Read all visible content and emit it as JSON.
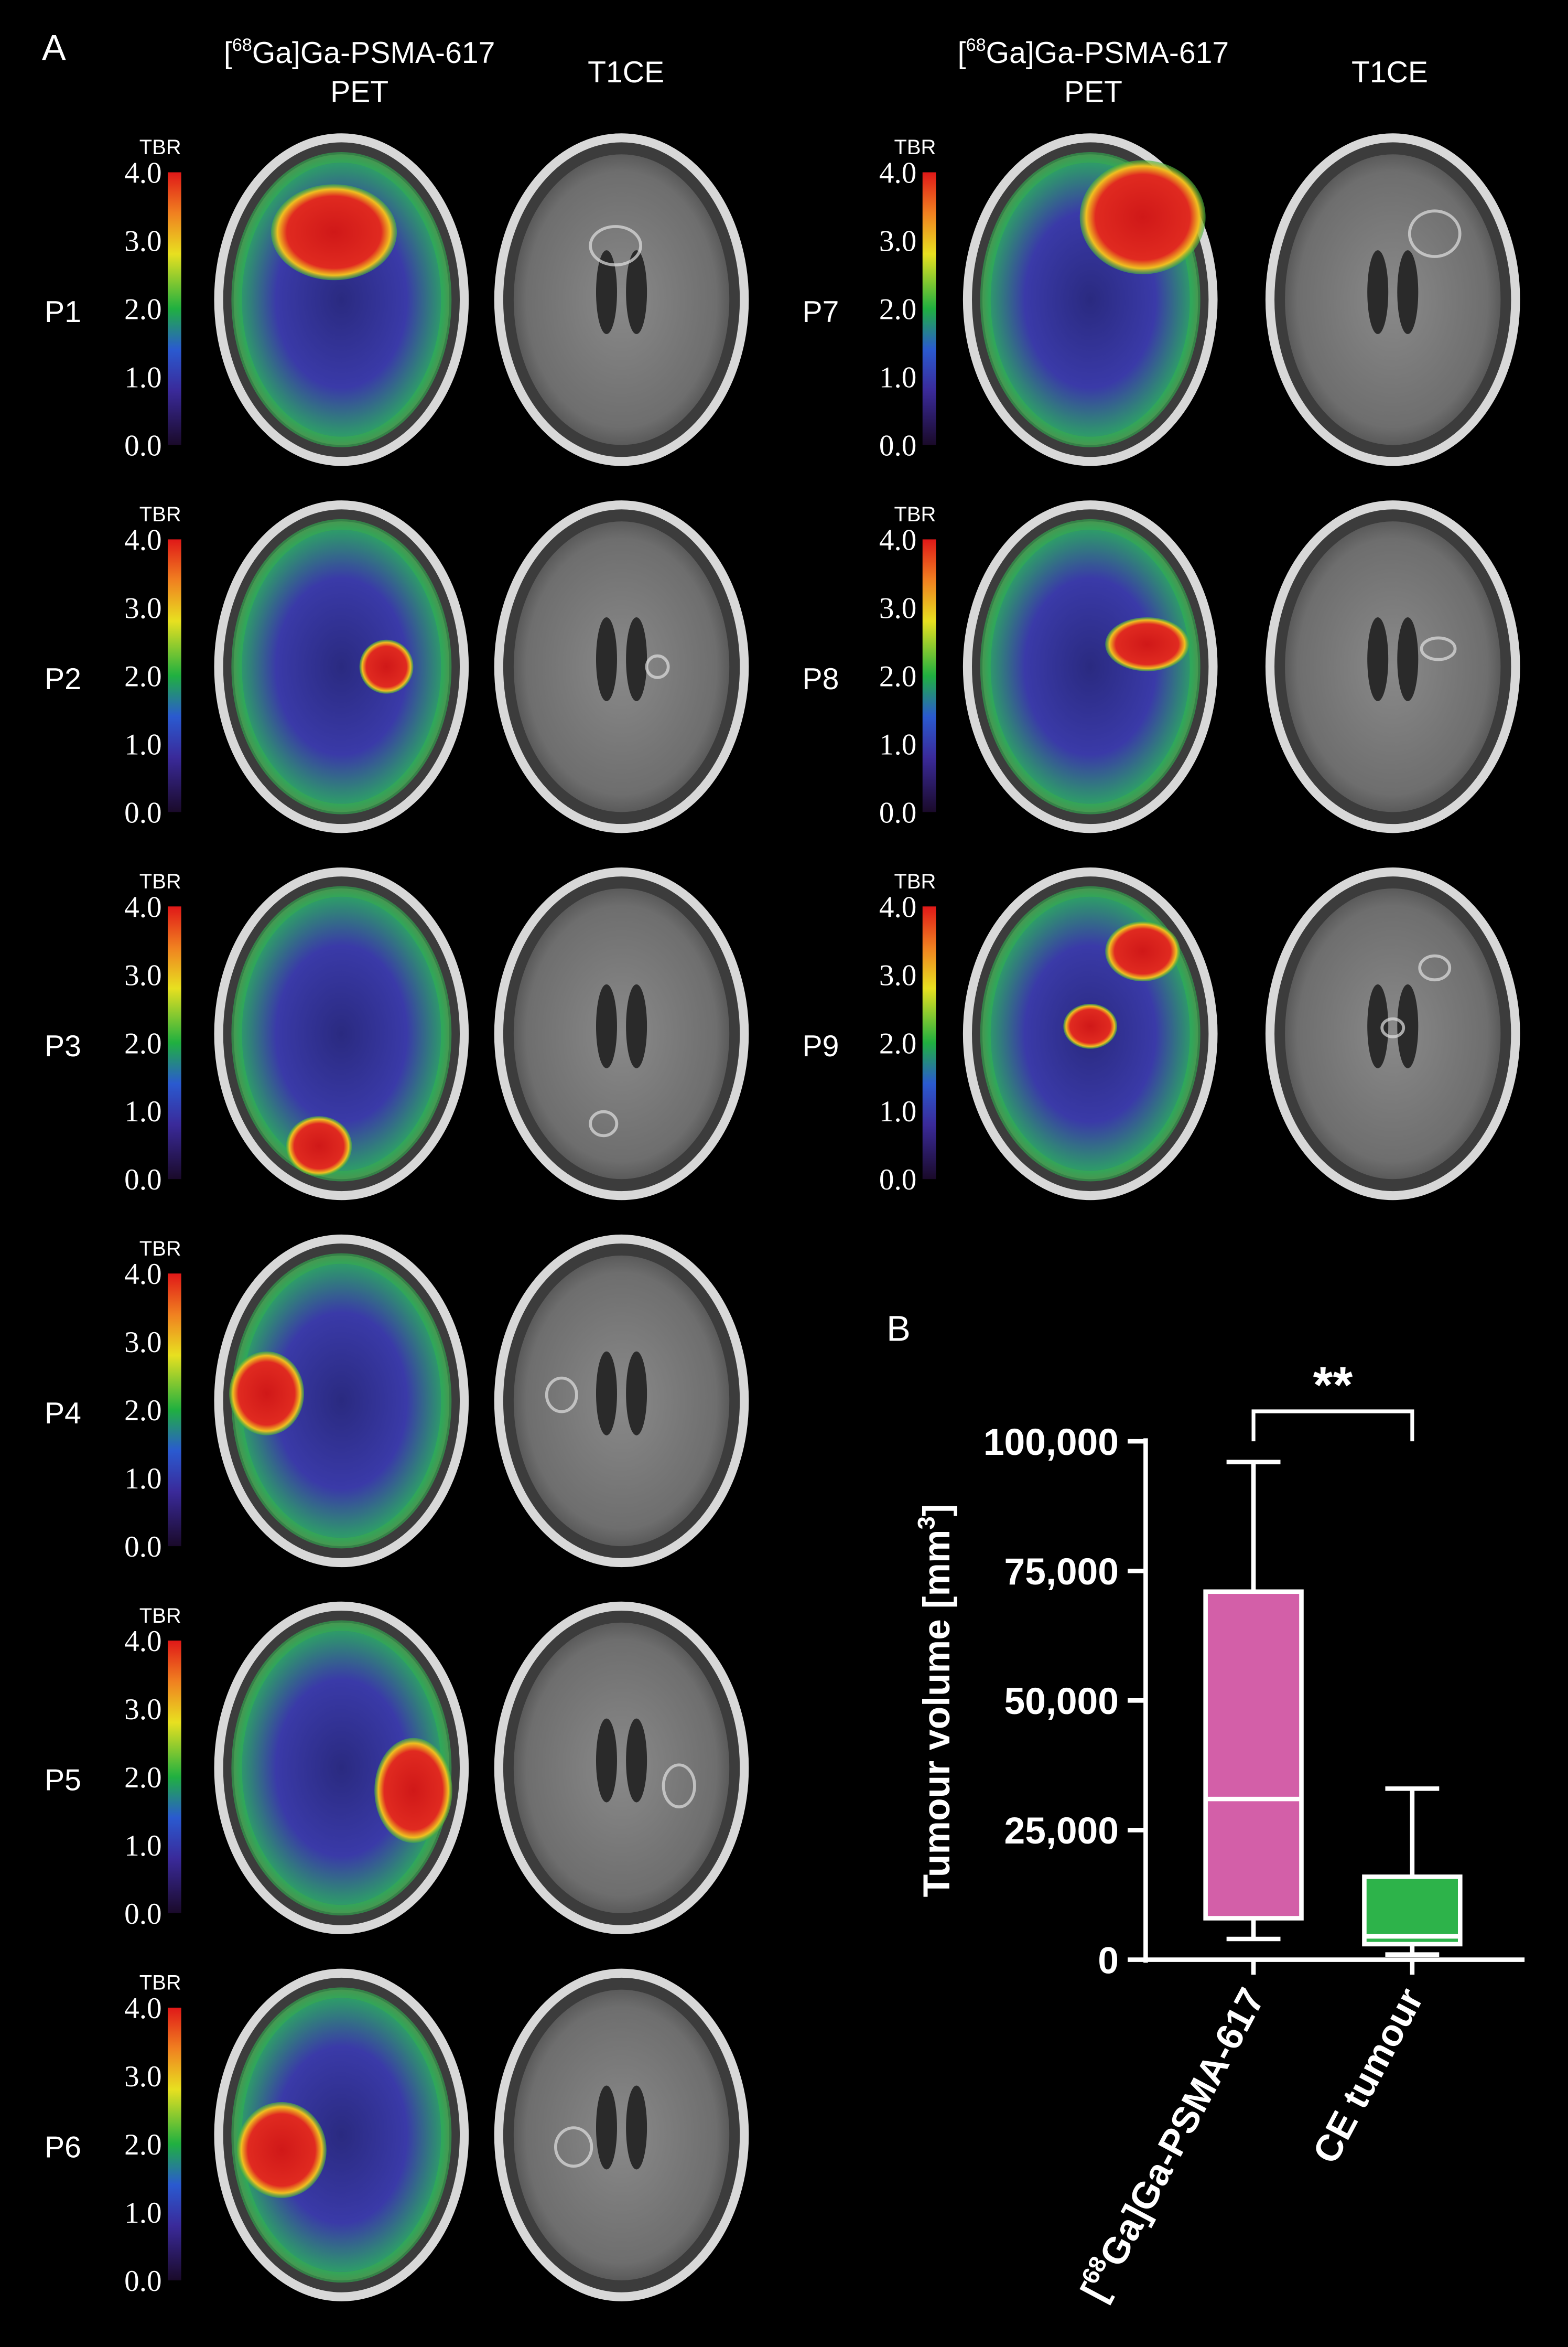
{
  "panel_a": {
    "label": "A",
    "headers": {
      "pet_pre": "[",
      "pet_sup": "68",
      "pet_rest": "Ga]Ga-PSMA-617",
      "pet_line2": "PET",
      "t1ce": "T1CE"
    },
    "colorbar": {
      "title": "TBR",
      "lim": [
        0,
        4
      ],
      "ticks": [
        {
          "value": 0,
          "label": "0.0"
        },
        {
          "value": 1,
          "label": "1.0"
        },
        {
          "value": 2,
          "label": "2.0"
        },
        {
          "value": 3,
          "label": "3.0"
        },
        {
          "value": 4,
          "label": "4.0"
        }
      ]
    },
    "patients": [
      "P1",
      "P2",
      "P3",
      "P4",
      "P5",
      "P6",
      "P7",
      "P8",
      "P9"
    ]
  },
  "chart_data": {
    "type": "box",
    "panel_label": "B",
    "ylabel": "Tumour volume [mm",
    "ylabel_sup": "3",
    "ylabel_end": "]",
    "categories": [
      {
        "pre": "[",
        "sup": "68",
        "text": "Ga]Ga-PSMA-617"
      },
      {
        "text": "CE tumour"
      }
    ],
    "boxes": [
      {
        "min": 4000,
        "q1": 8000,
        "median": 31000,
        "q3": 71000,
        "max": 96000,
        "color": "#d35fa8"
      },
      {
        "min": 1000,
        "q1": 3000,
        "median": 4500,
        "q3": 16000,
        "max": 33000,
        "color": "#2db34a"
      }
    ],
    "ylim": [
      0,
      100000
    ],
    "yticks": [
      {
        "value": 0,
        "label": "0"
      },
      {
        "value": 25000,
        "label": "25,000"
      },
      {
        "value": 50000,
        "label": "50,000"
      },
      {
        "value": 75000,
        "label": "75,000"
      },
      {
        "value": 100000,
        "label": "100,000"
      }
    ],
    "annotation": "**"
  }
}
